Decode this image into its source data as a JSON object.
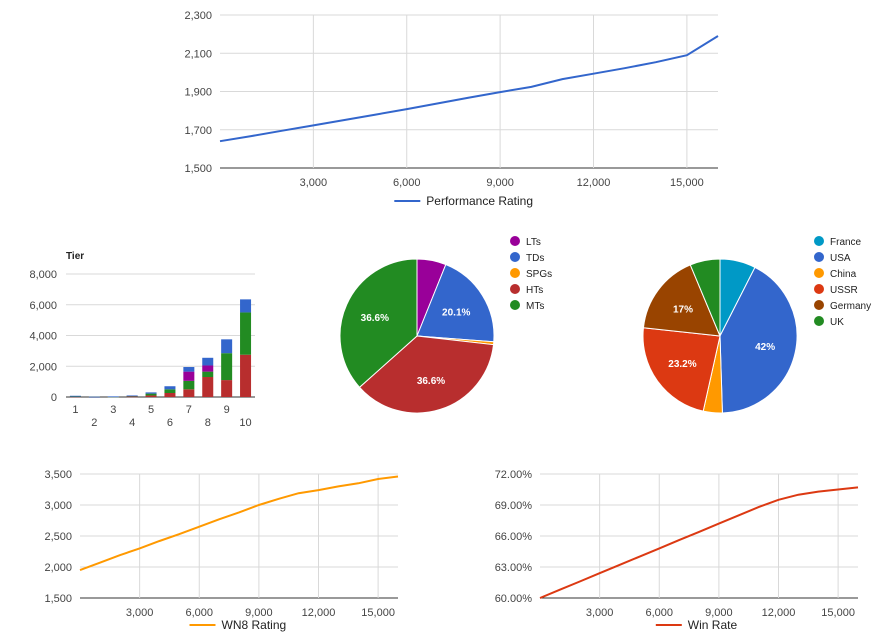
{
  "chart_data": [
    {
      "type": "line",
      "x": [
        0,
        1000,
        2000,
        3000,
        4000,
        5000,
        6000,
        7000,
        8000,
        9000,
        10000,
        11000,
        12000,
        13000,
        14000,
        15000,
        16000
      ],
      "series": [
        {
          "name": "Performance Rating",
          "color": "#3366cc",
          "values": [
            1640,
            1667,
            1695,
            1723,
            1751,
            1779,
            1808,
            1838,
            1868,
            1897,
            1924,
            1965,
            1993,
            2022,
            2053,
            2090,
            2190
          ]
        }
      ],
      "xticks": [
        "3,000",
        "6,000",
        "9,000",
        "12,000",
        "15,000"
      ],
      "yticks": [
        "1,500",
        "1,700",
        "1,900",
        "2,100",
        "2,300"
      ],
      "xlim": [
        0,
        16000
      ],
      "ylim": [
        1500,
        2300
      ],
      "legend": "bottom"
    },
    {
      "type": "bar",
      "stacked": true,
      "title": "Tier",
      "categories": [
        "1",
        "2",
        "3",
        "4",
        "5",
        "6",
        "7",
        "8",
        "9",
        "10"
      ],
      "series": [
        {
          "color": "#b82e2e",
          "values": [
            40,
            10,
            20,
            40,
            100,
            260,
            500,
            1300,
            1100,
            2750
          ]
        },
        {
          "color": "#228b22",
          "values": [
            20,
            5,
            10,
            40,
            120,
            240,
            550,
            350,
            1750,
            2750
          ]
        },
        {
          "color": "#990099",
          "values": [
            0,
            0,
            0,
            0,
            0,
            0,
            600,
            400,
            0,
            0
          ]
        },
        {
          "color": "#3366cc",
          "values": [
            20,
            5,
            10,
            20,
            80,
            200,
            300,
            500,
            900,
            850
          ]
        }
      ],
      "yticks": [
        "0",
        "2,000",
        "4,000",
        "6,000",
        "8,000"
      ],
      "ylim": [
        0,
        8000
      ]
    },
    {
      "type": "pie",
      "labels": [
        "LTs",
        "TDs",
        "SPGs",
        "HTs",
        "MTs"
      ],
      "values": [
        6.1,
        20.1,
        0.6,
        36.6,
        36.6
      ],
      "colors": [
        "#990099",
        "#3366cc",
        "#ff9900",
        "#b82e2e",
        "#228b22"
      ],
      "slice_labels": [
        "",
        "20.1%",
        "",
        "36.6%",
        "36.6%"
      ],
      "legend": "right"
    },
    {
      "type": "pie",
      "labels": [
        "France",
        "USA",
        "China",
        "USSR",
        "Germany",
        "UK"
      ],
      "values": [
        7.5,
        42,
        4,
        23.2,
        17,
        6.3
      ],
      "colors": [
        "#0099c6",
        "#3366cc",
        "#ff9900",
        "#dc3912",
        "#994400",
        "#228b22"
      ],
      "slice_labels": [
        "",
        "42%",
        "",
        "23.2%",
        "17%",
        ""
      ],
      "legend": "right"
    },
    {
      "type": "line",
      "x": [
        0,
        1000,
        2000,
        3000,
        4000,
        5000,
        6000,
        7000,
        8000,
        9000,
        10000,
        11000,
        12000,
        13000,
        14000,
        15000,
        16000
      ],
      "series": [
        {
          "name": "WN8 Rating",
          "color": "#ff9900",
          "values": [
            1950,
            2070,
            2190,
            2300,
            2420,
            2530,
            2650,
            2770,
            2880,
            3000,
            3100,
            3190,
            3240,
            3300,
            3350,
            3420,
            3460
          ]
        }
      ],
      "xticks": [
        "3,000",
        "6,000",
        "9,000",
        "12,000",
        "15,000"
      ],
      "yticks": [
        "1,500",
        "2,000",
        "2,500",
        "3,000",
        "3,500"
      ],
      "xlim": [
        0,
        16000
      ],
      "ylim": [
        1500,
        3500
      ],
      "legend": "bottom"
    },
    {
      "type": "line",
      "x": [
        0,
        1000,
        2000,
        3000,
        4000,
        5000,
        6000,
        7000,
        8000,
        9000,
        10000,
        11000,
        12000,
        13000,
        14000,
        15000,
        16000
      ],
      "series": [
        {
          "name": "Win Rate",
          "color": "#dc3912",
          "values": [
            60.0,
            60.8,
            61.6,
            62.4,
            63.2,
            64.0,
            64.8,
            65.6,
            66.4,
            67.2,
            68.0,
            68.8,
            69.5,
            70.0,
            70.3,
            70.5,
            70.7
          ]
        }
      ],
      "xticks": [
        "3,000",
        "6,000",
        "9,000",
        "12,000",
        "15,000"
      ],
      "yticks": [
        "60.00%",
        "63.00%",
        "66.00%",
        "69.00%",
        "72.00%"
      ],
      "xlim": [
        0,
        16000
      ],
      "ylim": [
        60,
        72
      ],
      "legend": "bottom"
    }
  ]
}
